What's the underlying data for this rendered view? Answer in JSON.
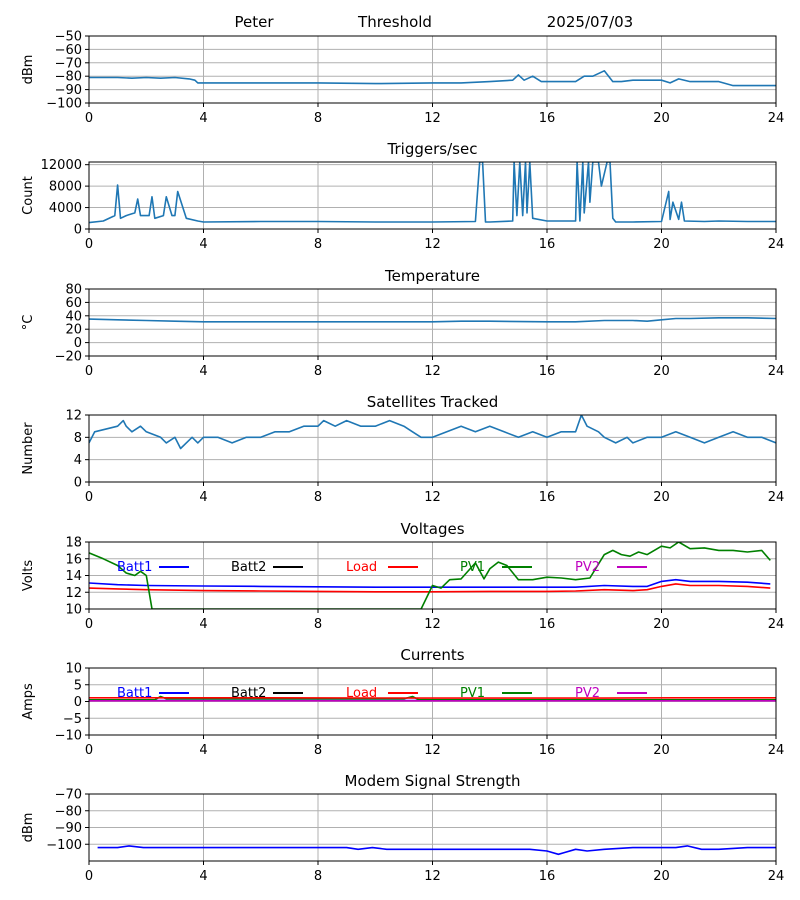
{
  "header": {
    "name": "Peter",
    "label": "Threshold",
    "date": "2025/07/03"
  },
  "chart_data": [
    {
      "id": "threshold",
      "type": "line",
      "title": "",
      "ylabel": "dBm",
      "xlim": [
        0,
        24
      ],
      "ylim": [
        -100,
        -50
      ],
      "xticks": [
        0,
        4,
        8,
        12,
        16,
        20,
        24
      ],
      "yticks": [
        -100,
        -90,
        -80,
        -70,
        -60,
        -50
      ],
      "grid": true,
      "series": [
        {
          "name": "",
          "color": "#1f77b4",
          "x": [
            0,
            1,
            1.5,
            2,
            2.5,
            3,
            3.5,
            3.7,
            3.8,
            4,
            6,
            8,
            10,
            12,
            13,
            14,
            14.8,
            15,
            15.2,
            15.5,
            15.8,
            16,
            17,
            17.3,
            17.6,
            18,
            18.3,
            18.6,
            19,
            19.5,
            20,
            20.3,
            20.6,
            21,
            22,
            22.5,
            23,
            24
          ],
          "y": [
            -81,
            -81,
            -81.5,
            -81,
            -81.5,
            -81,
            -82,
            -83,
            -85,
            -85,
            -85,
            -85,
            -85.5,
            -85,
            -85,
            -84,
            -83,
            -79,
            -83,
            -80,
            -84,
            -84,
            -84,
            -80,
            -80,
            -76,
            -84,
            -84,
            -83,
            -83,
            -83,
            -85,
            -82,
            -84,
            -84,
            -87,
            -87,
            -87
          ]
        }
      ]
    },
    {
      "id": "triggers",
      "type": "line",
      "title": "Triggers/sec",
      "ylabel": "Count",
      "xlim": [
        0,
        24
      ],
      "ylim": [
        0,
        12500
      ],
      "xticks": [
        0,
        4,
        8,
        12,
        16,
        20,
        24
      ],
      "yticks": [
        0,
        4000,
        8000,
        12000
      ],
      "grid": true,
      "series": [
        {
          "name": "",
          "color": "#1f77b4",
          "x": [
            0,
            0.5,
            0.9,
            1.0,
            1.1,
            1.3,
            1.6,
            1.7,
            1.8,
            2.1,
            2.2,
            2.3,
            2.6,
            2.7,
            2.9,
            3.0,
            3.1,
            3.4,
            3.8,
            4,
            6,
            8,
            10,
            12,
            13.5,
            13.65,
            13.75,
            13.85,
            14,
            14.8,
            14.85,
            14.95,
            15.05,
            15.15,
            15.25,
            15.3,
            15.4,
            15.5,
            16,
            16.5,
            17,
            17.05,
            17.15,
            17.25,
            17.3,
            17.45,
            17.5,
            17.6,
            17.7,
            17.8,
            17.9,
            18.1,
            18.2,
            18.3,
            18.4,
            19,
            20,
            20.25,
            20.3,
            20.4,
            20.6,
            20.7,
            20.8,
            21.5,
            22,
            23,
            24
          ],
          "y": [
            1200,
            1500,
            2500,
            8200,
            2000,
            2500,
            3000,
            5600,
            2500,
            2500,
            6000,
            2000,
            2500,
            6000,
            2500,
            2500,
            7000,
            2000,
            1500,
            1300,
            1400,
            1400,
            1300,
            1300,
            1400,
            12500,
            12500,
            1300,
            1300,
            1500,
            12500,
            2500,
            12500,
            2500,
            12500,
            3000,
            12500,
            2000,
            1500,
            1500,
            1500,
            12500,
            1500,
            12500,
            3000,
            12500,
            5000,
            12500,
            12500,
            12500,
            8000,
            12500,
            12500,
            2000,
            1300,
            1300,
            1400,
            7000,
            1800,
            5000,
            1800,
            5000,
            1500,
            1400,
            1500,
            1400,
            1400
          ]
        }
      ]
    },
    {
      "id": "temperature",
      "type": "line",
      "title": "Temperature",
      "ylabel": "°C",
      "xlim": [
        0,
        24
      ],
      "ylim": [
        -20,
        80
      ],
      "xticks": [
        0,
        4,
        8,
        12,
        16,
        20,
        24
      ],
      "yticks": [
        -20,
        0,
        20,
        40,
        60,
        80
      ],
      "grid": true,
      "series": [
        {
          "name": "",
          "color": "#1f77b4",
          "x": [
            0,
            1,
            2,
            3,
            4,
            6,
            8,
            10,
            12,
            13,
            14,
            16,
            17,
            18,
            19,
            19.5,
            20,
            20.5,
            21,
            22,
            23,
            24
          ],
          "y": [
            35,
            34,
            33,
            32,
            31,
            31,
            31,
            31,
            31,
            32,
            32,
            31,
            31,
            33,
            33,
            32,
            34,
            36,
            36,
            37,
            37,
            36
          ]
        }
      ]
    },
    {
      "id": "satellites",
      "type": "line",
      "title": "Satellites Tracked",
      "ylabel": "Number",
      "xlim": [
        0,
        24
      ],
      "ylim": [
        0,
        12
      ],
      "xticks": [
        0,
        4,
        8,
        12,
        16,
        20,
        24
      ],
      "yticks": [
        0,
        4,
        8,
        12
      ],
      "grid": true,
      "series": [
        {
          "name": "",
          "color": "#1f77b4",
          "x": [
            0,
            0.1,
            0.2,
            1,
            1.2,
            1.3,
            1.5,
            1.8,
            2,
            2.5,
            2.7,
            3,
            3.2,
            3.4,
            3.6,
            3.8,
            4,
            4.5,
            5,
            5.5,
            6,
            6.5,
            7,
            7.5,
            8,
            8.2,
            8.6,
            9,
            9.5,
            10,
            10.5,
            11,
            11.3,
            11.6,
            12,
            12.5,
            13,
            13.5,
            14,
            14.5,
            15,
            15.5,
            16,
            16.5,
            17,
            17.2,
            17.4,
            17.8,
            18,
            18.4,
            18.8,
            19,
            19.5,
            20,
            20.5,
            21,
            21.5,
            22,
            22.5,
            23,
            23.5,
            24
          ],
          "y": [
            7,
            8,
            9,
            10,
            11,
            10,
            9,
            10,
            9,
            8,
            7,
            8,
            6,
            7,
            8,
            7,
            8,
            8,
            7,
            8,
            8,
            9,
            9,
            10,
            10,
            11,
            10,
            11,
            10,
            10,
            11,
            10,
            9,
            8,
            8,
            9,
            10,
            9,
            10,
            9,
            8,
            9,
            8,
            9,
            9,
            12,
            10,
            9,
            8,
            7,
            8,
            7,
            8,
            8,
            9,
            8,
            7,
            8,
            9,
            8,
            8,
            7
          ]
        }
      ]
    },
    {
      "id": "voltages",
      "type": "line",
      "title": "Voltages",
      "ylabel": "Volts",
      "xlim": [
        0,
        24
      ],
      "ylim": [
        10,
        18
      ],
      "xticks": [
        0,
        4,
        8,
        12,
        16,
        20,
        24
      ],
      "yticks": [
        10,
        12,
        14,
        16,
        18
      ],
      "grid": true,
      "legend": "inside-top",
      "series": [
        {
          "name": "Batt1",
          "color": "#0000ff",
          "x": [
            0,
            1,
            2,
            4,
            6,
            8,
            10,
            12,
            14,
            16,
            17,
            18,
            19,
            19.5,
            20,
            20.5,
            21,
            22,
            23,
            23.8
          ],
          "y": [
            13.1,
            12.9,
            12.8,
            12.75,
            12.7,
            12.65,
            12.6,
            12.6,
            12.6,
            12.6,
            12.6,
            12.8,
            12.7,
            12.7,
            13.3,
            13.5,
            13.3,
            13.3,
            13.2,
            13.0
          ]
        },
        {
          "name": "Batt2",
          "color": "#000000",
          "x": [],
          "y": []
        },
        {
          "name": "Load",
          "color": "#ff0000",
          "x": [
            0,
            1,
            2,
            4,
            6,
            8,
            10,
            12,
            14,
            16,
            17,
            18,
            19,
            19.5,
            20,
            20.5,
            21,
            22,
            23,
            23.8
          ],
          "y": [
            12.5,
            12.4,
            12.3,
            12.2,
            12.15,
            12.1,
            12.05,
            12.05,
            12.1,
            12.1,
            12.15,
            12.3,
            12.2,
            12.3,
            12.7,
            13.0,
            12.8,
            12.8,
            12.7,
            12.5
          ]
        },
        {
          "name": "PV1",
          "color": "#008000",
          "x": [
            0,
            0.5,
            1,
            1.3,
            1.6,
            1.8,
            2.0,
            2.2,
            11.6,
            12.0,
            12.3,
            12.6,
            13,
            13.5,
            13.8,
            14,
            14.3,
            14.6,
            15.0,
            15.5,
            16,
            16.5,
            17,
            17.5,
            18,
            18.3,
            18.6,
            18.9,
            19.2,
            19.5,
            20,
            20.3,
            20.6,
            21,
            21.5,
            22,
            22.5,
            23,
            23.5,
            23.8
          ],
          "y": [
            16.7,
            16.0,
            15.2,
            14.3,
            14.0,
            14.5,
            14.0,
            10.0,
            10.0,
            12.8,
            12.5,
            13.5,
            13.6,
            15.5,
            13.6,
            14.8,
            15.6,
            15.2,
            13.5,
            13.5,
            13.8,
            13.7,
            13.5,
            13.7,
            16.5,
            17.0,
            16.5,
            16.3,
            16.8,
            16.5,
            17.5,
            17.3,
            18.0,
            17.2,
            17.3,
            17.0,
            17.0,
            16.8,
            17.0,
            15.8
          ]
        },
        {
          "name": "PV2",
          "color": "#bf00bf",
          "x": [],
          "y": []
        }
      ]
    },
    {
      "id": "currents",
      "type": "line",
      "title": "Currents",
      "ylabel": "Amps",
      "xlim": [
        0,
        24
      ],
      "ylim": [
        -10,
        10
      ],
      "xticks": [
        0,
        4,
        8,
        12,
        16,
        20,
        24
      ],
      "yticks": [
        -10,
        -5,
        0,
        5,
        10
      ],
      "grid": true,
      "legend": "inside-top",
      "series": [
        {
          "name": "Batt1",
          "color": "#0000ff",
          "x": [
            0,
            24
          ],
          "y": [
            0.3,
            0.3
          ]
        },
        {
          "name": "Batt2",
          "color": "#000000",
          "x": [],
          "y": []
        },
        {
          "name": "PV1",
          "color": "#008000",
          "x": [
            0,
            2.3,
            2.5,
            2.7,
            3,
            6,
            9,
            11,
            11.3,
            11.5,
            12,
            24
          ],
          "y": [
            0.5,
            0.5,
            1.5,
            0.8,
            0.8,
            0.8,
            0.8,
            0.8,
            1.5,
            0.6,
            0.5,
            0.5
          ]
        },
        {
          "name": "Load",
          "color": "#ff0000",
          "x": [
            0,
            6,
            12,
            18,
            20.5,
            24
          ],
          "y": [
            1.1,
            1.1,
            1.0,
            1.0,
            1.1,
            1.1
          ]
        },
        {
          "name": "PV2",
          "color": "#bf00bf",
          "x": [
            0,
            24
          ],
          "y": [
            0.2,
            0.2
          ]
        }
      ]
    },
    {
      "id": "modem",
      "type": "line",
      "title": "Modem Signal Strength",
      "ylabel": "dBm",
      "xlim": [
        0,
        24
      ],
      "ylim": [
        -110,
        -70
      ],
      "xticks": [
        0,
        4,
        8,
        12,
        16,
        20,
        24
      ],
      "yticks": [
        -100,
        -90,
        -80,
        -70
      ],
      "grid": true,
      "series": [
        {
          "name": "",
          "color": "#0000ff",
          "x": [
            0.3,
            1,
            1.4,
            1.9,
            3,
            5,
            7,
            8.5,
            9,
            9.4,
            9.9,
            10.4,
            11,
            12,
            14,
            15.4,
            16,
            16.4,
            16.6,
            17,
            17.4,
            18,
            19,
            20,
            20.5,
            20.9,
            21.4,
            22,
            23,
            24
          ],
          "y": [
            -102,
            -102,
            -101,
            -102,
            -102,
            -102,
            -102,
            -102,
            -102,
            -103,
            -102,
            -103,
            -103,
            -103,
            -103,
            -103,
            -104,
            -106,
            -105,
            -103,
            -104,
            -103,
            -102,
            -102,
            -102,
            -101,
            -103,
            -103,
            -102,
            -102
          ]
        }
      ]
    }
  ]
}
